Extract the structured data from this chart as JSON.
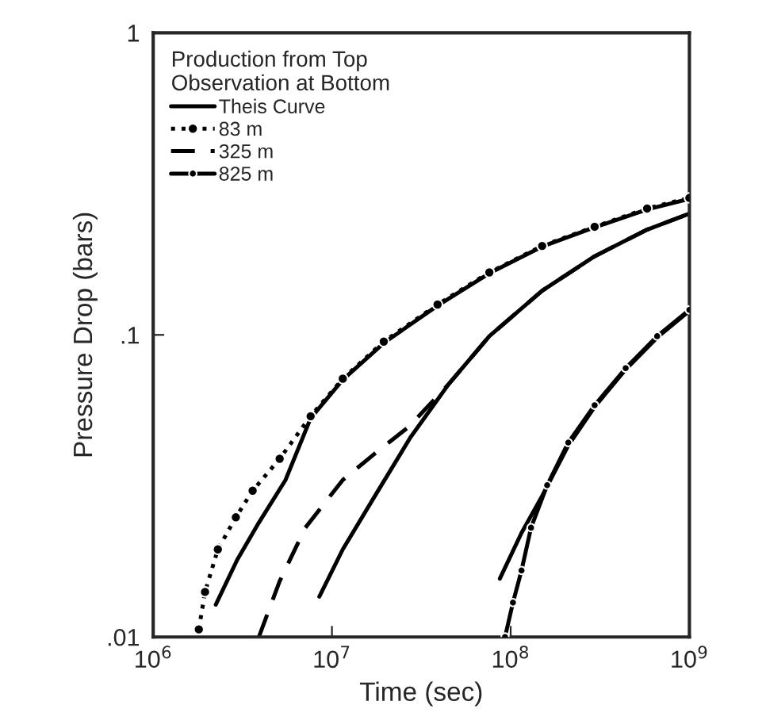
{
  "chart_data": {
    "type": "line",
    "xlabel": "Time (sec)",
    "ylabel": "Pressure Drop (bars)",
    "legend_title": "Production from Top\nObservation at Bottom",
    "log": "xy",
    "grid": false,
    "legend": "top left",
    "xlim": [
      1000000,
      1000000000
    ],
    "ylim": [
      0.01,
      1
    ],
    "xticks": [
      {
        "value": 1000000,
        "label": "10$^{6}$"
      },
      {
        "value": 10000000,
        "label": "10$^{7}$"
      },
      {
        "value": 100000000,
        "label": "10$^{8}$"
      },
      {
        "value": 1000000000,
        "label": "10$^{9}$"
      }
    ],
    "yticks": [
      {
        "value": 0.01,
        "label": ".01"
      },
      {
        "value": 0.1,
        "label": ".1"
      },
      {
        "value": 1,
        "label": "1"
      }
    ],
    "series": [
      {
        "name": "Theis Curve",
        "color": "#000000",
        "line_style": "solid",
        "marker": "none",
        "x": [
          2240000,
          2950000,
          3900000,
          5500000,
          7600000,
          11500000,
          19500000,
          39000000,
          76000000,
          150000000,
          295000000,
          580000000,
          1000000000
        ],
        "values": [
          0.0128,
          0.018,
          0.0239,
          0.0331,
          0.053,
          0.071,
          0.094,
          0.125,
          0.16,
          0.196,
          0.227,
          0.26,
          0.282
        ]
      },
      {
        "name": "83 m",
        "color": "#000000",
        "line_style": "dotted",
        "marker": "circle",
        "x": [
          1800000,
          1950000,
          2300000,
          2900000,
          3600000,
          5100000,
          7600000,
          11500000,
          19500000,
          39000000,
          76000000,
          150000000,
          295000000,
          580000000,
          1000000000
        ],
        "values": [
          0.0106,
          0.0141,
          0.0195,
          0.0249,
          0.0305,
          0.0389,
          0.0538,
          0.0716,
          0.095,
          0.126,
          0.161,
          0.197,
          0.228,
          0.262,
          0.284
        ]
      },
      {
        "name": "325 m",
        "color": "#000000",
        "line_style": "dashed",
        "marker": "none",
        "x": [
          3900000,
          5100000,
          7100000,
          11500000,
          17400000,
          27000000,
          45000000,
          76000000,
          150000000,
          295000000,
          580000000,
          1000000000
        ],
        "values": [
          0.01,
          0.0153,
          0.023,
          0.0331,
          0.0405,
          0.0497,
          0.0687,
          0.099,
          0.14,
          0.182,
          0.223,
          0.252
        ]
      },
      {
        "name": "825 m",
        "color": "#000000",
        "line_style": "solid",
        "marker": "circle",
        "x": [
          93000000,
          103000000,
          115000000,
          130000000,
          160000000,
          210000000,
          295000000,
          440000000,
          660000000,
          1000000000
        ],
        "values": [
          0.01,
          0.013,
          0.0166,
          0.023,
          0.0318,
          0.044,
          0.0585,
          0.0776,
          0.099,
          0.121
        ]
      },
      {
        "color": "#000000",
        "line_style": "solid",
        "marker": "none",
        "x": [
          8500000,
          11500000,
          17400000,
          27500000,
          45000000,
          76000000,
          150000000,
          295000000,
          580000000,
          1000000000
        ],
        "values": [
          0.0136,
          0.0195,
          0.0293,
          0.0458,
          0.0687,
          0.099,
          0.14,
          0.182,
          0.223,
          0.252
        ]
      },
      {
        "color": "#000000",
        "line_style": "solid",
        "marker": "none",
        "x": [
          87000000,
          115000000,
          150000000,
          210000000,
          295000000,
          440000000,
          660000000,
          1000000000
        ],
        "values": [
          0.0156,
          0.0221,
          0.0293,
          0.043,
          0.0578,
          0.0768,
          0.098,
          0.12
        ]
      }
    ]
  }
}
